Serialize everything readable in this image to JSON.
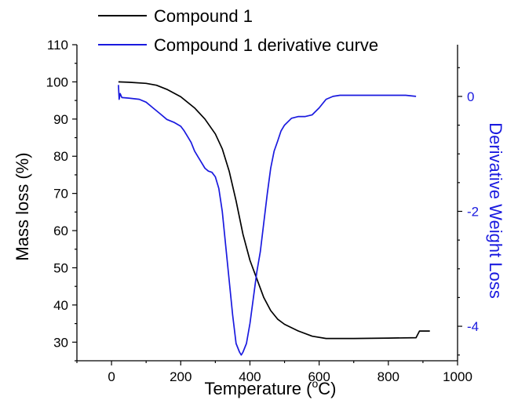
{
  "chart_data": {
    "type": "line",
    "xlabel": "Temperature (",
    "xlabel_sup": "o",
    "xlabel_suffix": "C)",
    "ylabel": "Mass loss (%)",
    "y2label": "Derivative Weight Loss",
    "xlim": [
      -100,
      1000
    ],
    "ylim": [
      25,
      110
    ],
    "y2lim": [
      -4.6,
      0.9
    ],
    "x_ticks": [
      "0",
      "200",
      "400",
      "600",
      "800",
      "1000"
    ],
    "y_ticks": [
      "30",
      "40",
      "50",
      "60",
      "70",
      "80",
      "90",
      "100",
      "110"
    ],
    "y2_ticks": [
      "0",
      "-2",
      "-4"
    ],
    "grid": false,
    "legend_position": "top",
    "colors": {
      "mass": "#000000",
      "derivative": "#1a1adf"
    },
    "series": [
      {
        "name": "Compound 1",
        "axis": "left",
        "x": [
          20,
          50,
          100,
          130,
          160,
          200,
          240,
          270,
          300,
          320,
          340,
          360,
          380,
          400,
          420,
          440,
          460,
          480,
          500,
          540,
          580,
          620,
          650,
          700,
          800,
          880,
          890,
          920
        ],
        "y": [
          100,
          99.9,
          99.6,
          99.1,
          98,
          96,
          93,
          90,
          86,
          82,
          76,
          68,
          59,
          52,
          47,
          42,
          38.5,
          36.2,
          34.8,
          33,
          31.6,
          31,
          31,
          31,
          31.1,
          31.2,
          33,
          33
        ]
      },
      {
        "name": "Compound 1 derivative curve",
        "axis": "right",
        "x": [
          20,
          22,
          25,
          30,
          50,
          80,
          100,
          120,
          140,
          160,
          180,
          200,
          210,
          220,
          230,
          240,
          250,
          260,
          270,
          280,
          290,
          300,
          310,
          320,
          330,
          340,
          350,
          360,
          370,
          375,
          380,
          390,
          400,
          410,
          420,
          430,
          440,
          450,
          460,
          470,
          480,
          490,
          500,
          520,
          540,
          560,
          580,
          600,
          620,
          640,
          660,
          700,
          750,
          800,
          850,
          880
        ],
        "y": [
          0.2,
          -0.05,
          0.05,
          -0.02,
          -0.03,
          -0.05,
          -0.1,
          -0.2,
          -0.3,
          -0.4,
          -0.45,
          -0.52,
          -0.6,
          -0.7,
          -0.8,
          -0.95,
          -1.05,
          -1.15,
          -1.25,
          -1.3,
          -1.32,
          -1.4,
          -1.6,
          -2.0,
          -2.6,
          -3.2,
          -3.8,
          -4.3,
          -4.45,
          -4.5,
          -4.45,
          -4.3,
          -3.95,
          -3.5,
          -3.05,
          -2.7,
          -2.2,
          -1.7,
          -1.25,
          -0.95,
          -0.78,
          -0.6,
          -0.5,
          -0.38,
          -0.35,
          -0.35,
          -0.32,
          -0.2,
          -0.05,
          0.0,
          0.02,
          0.02,
          0.02,
          0.02,
          0.02,
          0.0
        ]
      }
    ]
  }
}
